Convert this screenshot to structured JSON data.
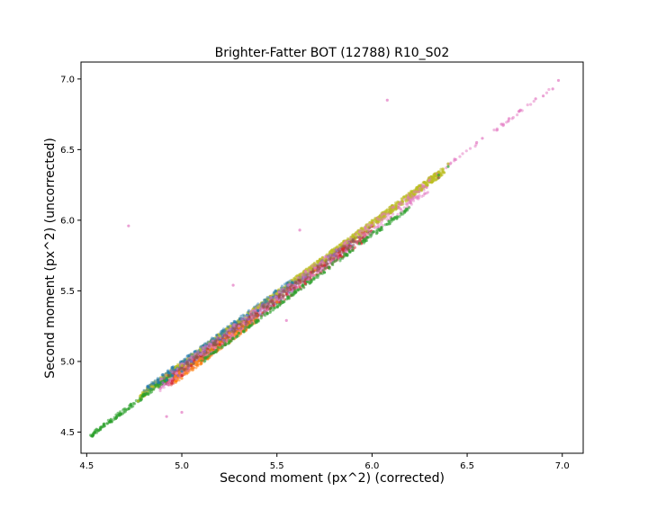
{
  "chart_data": {
    "type": "scatter",
    "title": "Brighter-Fatter BOT (12788) R10_S02",
    "xlabel": "Second moment (px^2) (corrected)",
    "ylabel": "Second moment (px^2) (uncorrected)",
    "xlim": [
      4.47,
      7.11
    ],
    "ylim": [
      4.35,
      7.12
    ],
    "xticks": [
      4.5,
      5.0,
      5.5,
      6.0,
      6.5,
      7.0
    ],
    "yticks": [
      4.5,
      5.0,
      5.5,
      6.0,
      6.5,
      7.0
    ],
    "xtick_labels": [
      "4.5",
      "5.0",
      "5.5",
      "6.0",
      "6.5",
      "7.0"
    ],
    "ytick_labels": [
      "4.5",
      "5.0",
      "5.5",
      "6.0",
      "6.5",
      "7.0"
    ],
    "grid": false,
    "legend": "none",
    "series": [
      {
        "color": "#2ca02c",
        "values": [
          [
            4.53,
            4.47
          ],
          [
            4.57,
            4.52
          ],
          [
            4.62,
            4.57
          ],
          [
            4.68,
            4.63
          ],
          [
            4.73,
            4.69
          ],
          [
            4.8,
            4.77
          ],
          [
            4.86,
            4.83
          ],
          [
            4.92,
            4.87
          ],
          [
            5.05,
            4.98
          ],
          [
            5.15,
            5.08
          ],
          [
            5.3,
            5.2
          ],
          [
            5.45,
            5.34
          ],
          [
            5.6,
            5.49
          ],
          [
            5.75,
            5.63
          ],
          [
            5.87,
            5.75
          ],
          [
            5.95,
            5.85
          ],
          [
            6.05,
            5.95
          ],
          [
            6.12,
            6.02
          ],
          [
            6.18,
            6.08
          ],
          [
            6.35,
            6.32
          ],
          [
            6.4,
            6.38
          ]
        ]
      },
      {
        "color": "#1f77b4",
        "values": [
          [
            4.82,
            4.82
          ],
          [
            4.88,
            4.85
          ],
          [
            4.92,
            4.87
          ],
          [
            4.95,
            4.9
          ],
          [
            5.0,
            4.93
          ],
          [
            5.05,
            5.0
          ],
          [
            5.1,
            5.05
          ],
          [
            5.2,
            5.15
          ],
          [
            5.3,
            5.28
          ],
          [
            5.4,
            5.36
          ]
        ]
      },
      {
        "color": "#ff7f0e",
        "values": [
          [
            4.97,
            4.86
          ],
          [
            5.0,
            4.88
          ],
          [
            5.02,
            4.92
          ],
          [
            5.05,
            4.98
          ],
          [
            5.1,
            5.02
          ],
          [
            5.15,
            5.08
          ],
          [
            5.2,
            5.14
          ],
          [
            5.25,
            5.2
          ],
          [
            5.3,
            5.24
          ],
          [
            5.5,
            5.42
          ],
          [
            5.7,
            5.65
          ],
          [
            6.0,
            5.98
          ]
        ]
      },
      {
        "color": "#d62728",
        "values": [
          [
            4.95,
            4.86
          ],
          [
            5.0,
            4.9
          ],
          [
            5.05,
            4.97
          ],
          [
            5.1,
            5.04
          ],
          [
            5.2,
            5.12
          ],
          [
            5.35,
            5.3
          ],
          [
            5.55,
            5.48
          ],
          [
            5.65,
            5.55
          ],
          [
            5.75,
            5.68
          ],
          [
            5.85,
            5.8
          ]
        ]
      },
      {
        "color": "#9467bd",
        "values": [
          [
            4.9,
            4.85
          ],
          [
            4.98,
            4.9
          ],
          [
            5.05,
            5.0
          ],
          [
            5.12,
            5.07
          ],
          [
            5.22,
            5.15
          ],
          [
            5.35,
            5.3
          ],
          [
            5.5,
            5.45
          ],
          [
            5.65,
            5.6
          ],
          [
            5.8,
            5.75
          ]
        ]
      },
      {
        "color": "#e377c2",
        "values": [
          [
            4.72,
            5.96
          ],
          [
            5.27,
            5.54
          ],
          [
            5.62,
            5.93
          ],
          [
            6.08,
            6.85
          ],
          [
            4.92,
            4.61
          ],
          [
            5.0,
            4.64
          ],
          [
            5.55,
            5.29
          ],
          [
            5.1,
            5.05
          ],
          [
            5.3,
            5.25
          ],
          [
            5.5,
            5.44
          ],
          [
            5.7,
            5.66
          ],
          [
            6.0,
            5.97
          ],
          [
            6.3,
            6.28
          ],
          [
            6.55,
            6.55
          ],
          [
            6.58,
            6.58
          ],
          [
            6.68,
            6.68
          ],
          [
            6.72,
            6.72
          ],
          [
            6.78,
            6.78
          ],
          [
            6.86,
            6.86
          ],
          [
            6.9,
            6.88
          ],
          [
            6.95,
            6.93
          ],
          [
            6.98,
            6.99
          ]
        ]
      },
      {
        "color": "#bcbd22",
        "values": [
          [
            4.77,
            4.72
          ],
          [
            4.85,
            4.82
          ],
          [
            4.92,
            4.9
          ],
          [
            5.0,
            4.97
          ],
          [
            5.1,
            5.08
          ],
          [
            5.2,
            5.18
          ],
          [
            5.3,
            5.28
          ],
          [
            5.4,
            5.38
          ],
          [
            5.5,
            5.48
          ],
          [
            5.6,
            5.58
          ],
          [
            5.7,
            5.68
          ],
          [
            5.8,
            5.78
          ],
          [
            5.9,
            5.88
          ],
          [
            6.0,
            5.98
          ],
          [
            6.1,
            6.08
          ],
          [
            6.2,
            6.18
          ],
          [
            6.3,
            6.3
          ],
          [
            6.4,
            6.4
          ]
        ]
      },
      {
        "color": "#8c564b",
        "values": [
          [
            4.93,
            4.9
          ],
          [
            5.0,
            4.95
          ],
          [
            5.08,
            5.03
          ],
          [
            5.18,
            5.12
          ],
          [
            5.28,
            5.22
          ],
          [
            5.45,
            5.39
          ],
          [
            5.6,
            5.56
          ],
          [
            5.9,
            5.86
          ],
          [
            6.35,
            6.3
          ]
        ]
      }
    ],
    "bands": [
      {
        "color": "#bcbd22",
        "x0": 4.78,
        "x1": 6.38,
        "lo": -0.05,
        "hi": 0.0,
        "n": 1400,
        "alpha": 0.55
      },
      {
        "color": "#1f77b4",
        "x0": 4.8,
        "x1": 5.6,
        "lo": -0.04,
        "hi": 0.01,
        "n": 250,
        "alpha": 0.45
      },
      {
        "color": "#9467bd",
        "x0": 4.9,
        "x1": 5.9,
        "lo": -0.09,
        "hi": -0.02,
        "n": 350,
        "alpha": 0.5
      },
      {
        "color": "#d62728",
        "x0": 4.92,
        "x1": 6.0,
        "lo": -0.11,
        "hi": -0.04,
        "n": 350,
        "alpha": 0.5
      },
      {
        "color": "#ff7f0e",
        "x0": 4.96,
        "x1": 5.4,
        "lo": -0.12,
        "hi": -0.06,
        "n": 220,
        "alpha": 0.5
      },
      {
        "color": "#e377c2",
        "x0": 4.88,
        "x1": 6.3,
        "lo": -0.1,
        "hi": -0.01,
        "n": 450,
        "alpha": 0.45
      },
      {
        "color": "#8c564b",
        "x0": 4.9,
        "x1": 6.0,
        "lo": -0.08,
        "hi": -0.03,
        "n": 200,
        "alpha": 0.45
      },
      {
        "color": "#2ca02c",
        "x0": 4.52,
        "x1": 4.95,
        "lo": -0.06,
        "hi": -0.03,
        "n": 140,
        "alpha": 0.55
      },
      {
        "color": "#2ca02c",
        "x0": 5.1,
        "x1": 6.2,
        "lo": -0.12,
        "hi": -0.09,
        "n": 220,
        "alpha": 0.55
      },
      {
        "color": "#e377c2",
        "x0": 6.3,
        "x1": 6.98,
        "lo": -0.02,
        "hi": 0.0,
        "n": 40,
        "alpha": 0.5
      }
    ]
  }
}
